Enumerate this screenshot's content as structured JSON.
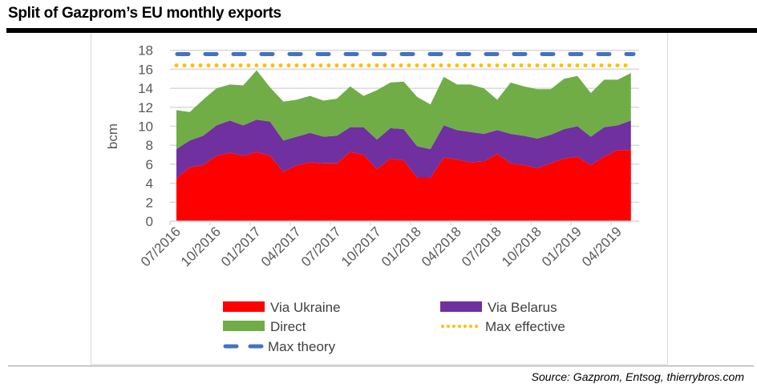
{
  "title": "Split of Gazprom’s EU monthly exports",
  "source": "Source: Gazprom, Entsog, thierrybros.com",
  "chart_data": {
    "type": "area",
    "stacked": true,
    "title": "Split of Gazprom’s EU monthly exports",
    "xlabel": "",
    "ylabel": "bcm",
    "ylim": [
      0,
      18
    ],
    "yticks": [
      0,
      2,
      4,
      6,
      8,
      10,
      12,
      14,
      16,
      18
    ],
    "grid": true,
    "legend_position": "bottom",
    "x": [
      "07/2016",
      "08/2016",
      "09/2016",
      "10/2016",
      "11/2016",
      "12/2016",
      "01/2017",
      "02/2017",
      "03/2017",
      "04/2017",
      "05/2017",
      "06/2017",
      "07/2017",
      "08/2017",
      "09/2017",
      "10/2017",
      "11/2017",
      "12/2017",
      "01/2018",
      "02/2018",
      "03/2018",
      "04/2018",
      "05/2018",
      "06/2018",
      "07/2018",
      "08/2018",
      "09/2018",
      "10/2018",
      "11/2018",
      "12/2018",
      "01/2019",
      "02/2019",
      "03/2019",
      "04/2019",
      "05/2019"
    ],
    "xtick_labels": [
      "07/2016",
      "10/2016",
      "01/2017",
      "04/2017",
      "07/2017",
      "10/2017",
      "01/2018",
      "04/2018",
      "07/2018",
      "10/2018",
      "01/2019",
      "04/2019"
    ],
    "series": [
      {
        "name": "Via Ukraine",
        "color": "#ff0000",
        "values": [
          4.5,
          5.7,
          5.9,
          6.9,
          7.2,
          6.9,
          7.3,
          6.9,
          5.2,
          5.9,
          6.2,
          6.1,
          6.1,
          7.3,
          7.0,
          5.5,
          6.6,
          6.4,
          4.6,
          4.6,
          6.7,
          6.5,
          6.2,
          6.3,
          7.1,
          6.1,
          5.9,
          5.6,
          6.1,
          6.6,
          6.8,
          5.9,
          6.8,
          7.5,
          7.5
        ]
      },
      {
        "name": "Via Belarus",
        "color": "#7030a0",
        "values": [
          3.1,
          2.8,
          3.1,
          3.2,
          3.4,
          3.2,
          3.4,
          3.6,
          3.3,
          3.0,
          3.1,
          2.8,
          2.9,
          2.6,
          2.9,
          3.1,
          3.2,
          3.3,
          3.3,
          3.0,
          3.4,
          3.1,
          3.2,
          2.9,
          2.5,
          3.1,
          3.1,
          3.1,
          3.0,
          3.1,
          3.2,
          3.0,
          3.1,
          2.6,
          3.1
        ]
      },
      {
        "name": "Direct",
        "color": "#70ad47",
        "values": [
          4.1,
          3.0,
          3.8,
          3.9,
          3.8,
          4.2,
          5.2,
          3.6,
          4.1,
          3.9,
          3.9,
          3.8,
          3.9,
          4.3,
          3.3,
          5.2,
          4.8,
          5.0,
          5.2,
          4.7,
          5.1,
          4.8,
          5.0,
          4.8,
          3.2,
          5.4,
          5.2,
          5.2,
          4.8,
          5.3,
          5.3,
          4.6,
          5.0,
          4.8,
          5.0
        ]
      },
      {
        "name": "Max effective",
        "color": "#ffc000",
        "style": "dotted",
        "value": 16.4
      },
      {
        "name": "Max theory",
        "color": "#4472c4",
        "style": "dashed",
        "value": 17.6
      }
    ]
  }
}
